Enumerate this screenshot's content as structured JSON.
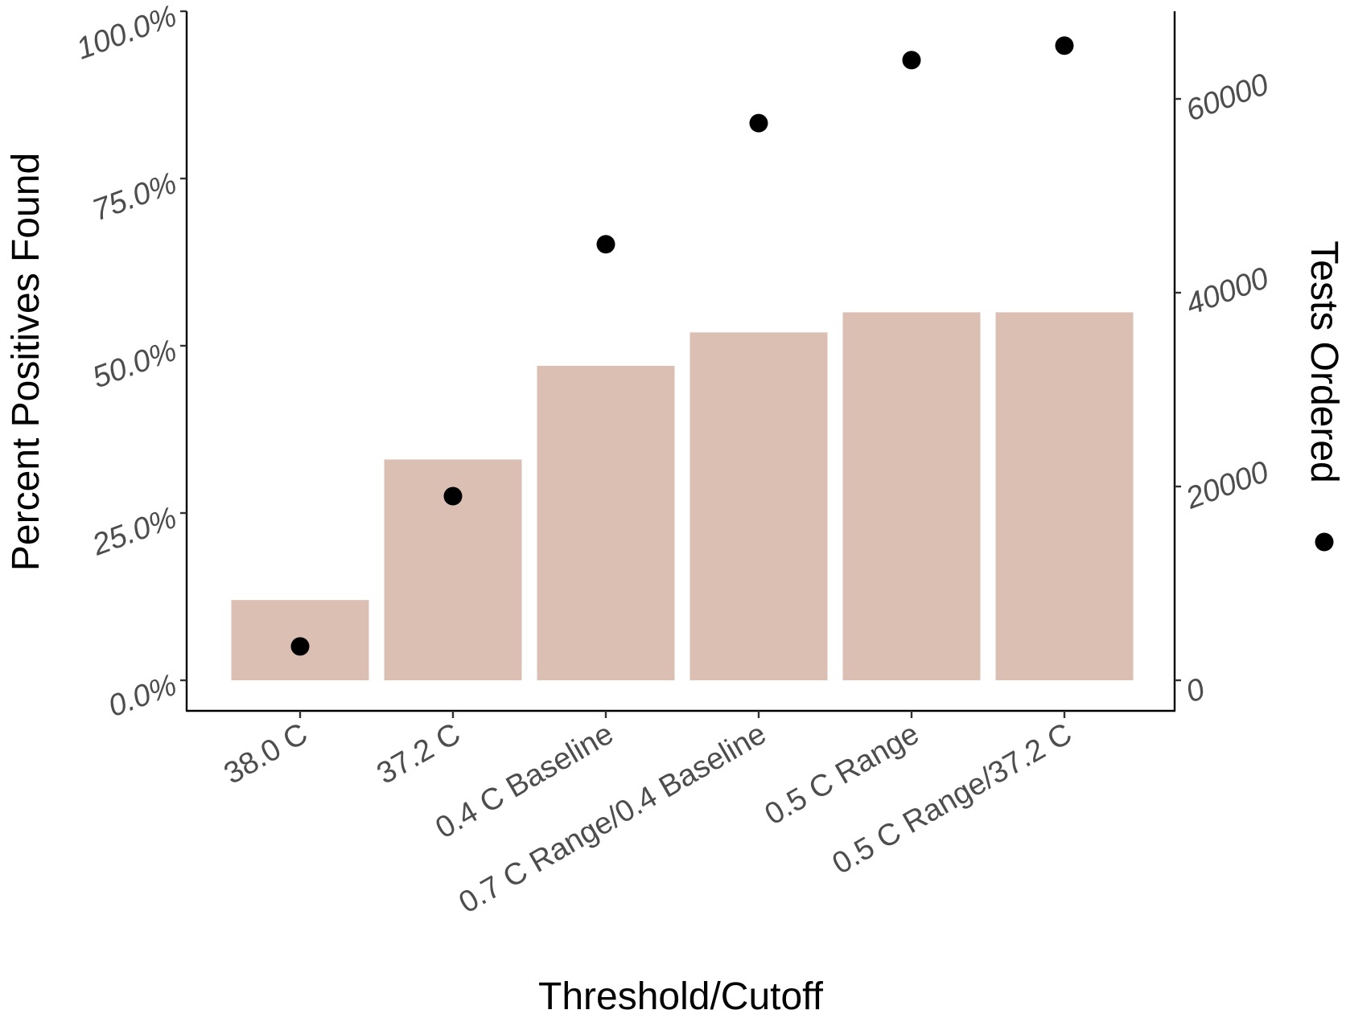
{
  "chart_data": {
    "type": "bar",
    "categories": [
      "38.0 C",
      "37.2 C",
      "0.4 C Baseline",
      "0.7 C Range/0.4 Baseline",
      "0.5 C Range",
      "0.5 C Range/37.2 C"
    ],
    "series": [
      {
        "axis": "left",
        "kind": "bar",
        "values": [
          0.12,
          0.33,
          0.47,
          0.52,
          0.55,
          0.55
        ],
        "color": "#dbbfb3"
      },
      {
        "name": "Tests Ordered",
        "axis": "right",
        "kind": "point",
        "values": [
          3500,
          19000,
          45000,
          57500,
          64000,
          65500
        ],
        "color": "#000000"
      }
    ],
    "xlabel": "Threshold/Cutoff",
    "ylabel": "Percent Positives Found",
    "y2label": "Tests Ordered",
    "ylim": [
      0,
      1
    ],
    "y2lim": [
      0,
      68250
    ],
    "yticks": [
      0,
      0.25,
      0.5,
      0.75,
      1.0
    ],
    "ytick_labels": [
      "0.0%",
      "25.0%",
      "50.0%",
      "75.0%",
      "100.0%"
    ],
    "y2ticks": [
      0,
      20000,
      40000,
      60000
    ],
    "y2tick_labels": [
      "0",
      "20000",
      "40000",
      "60000"
    ],
    "legend": {
      "label": "Tests Ordered",
      "placement": "right",
      "marker": "point"
    },
    "grid": false
  }
}
